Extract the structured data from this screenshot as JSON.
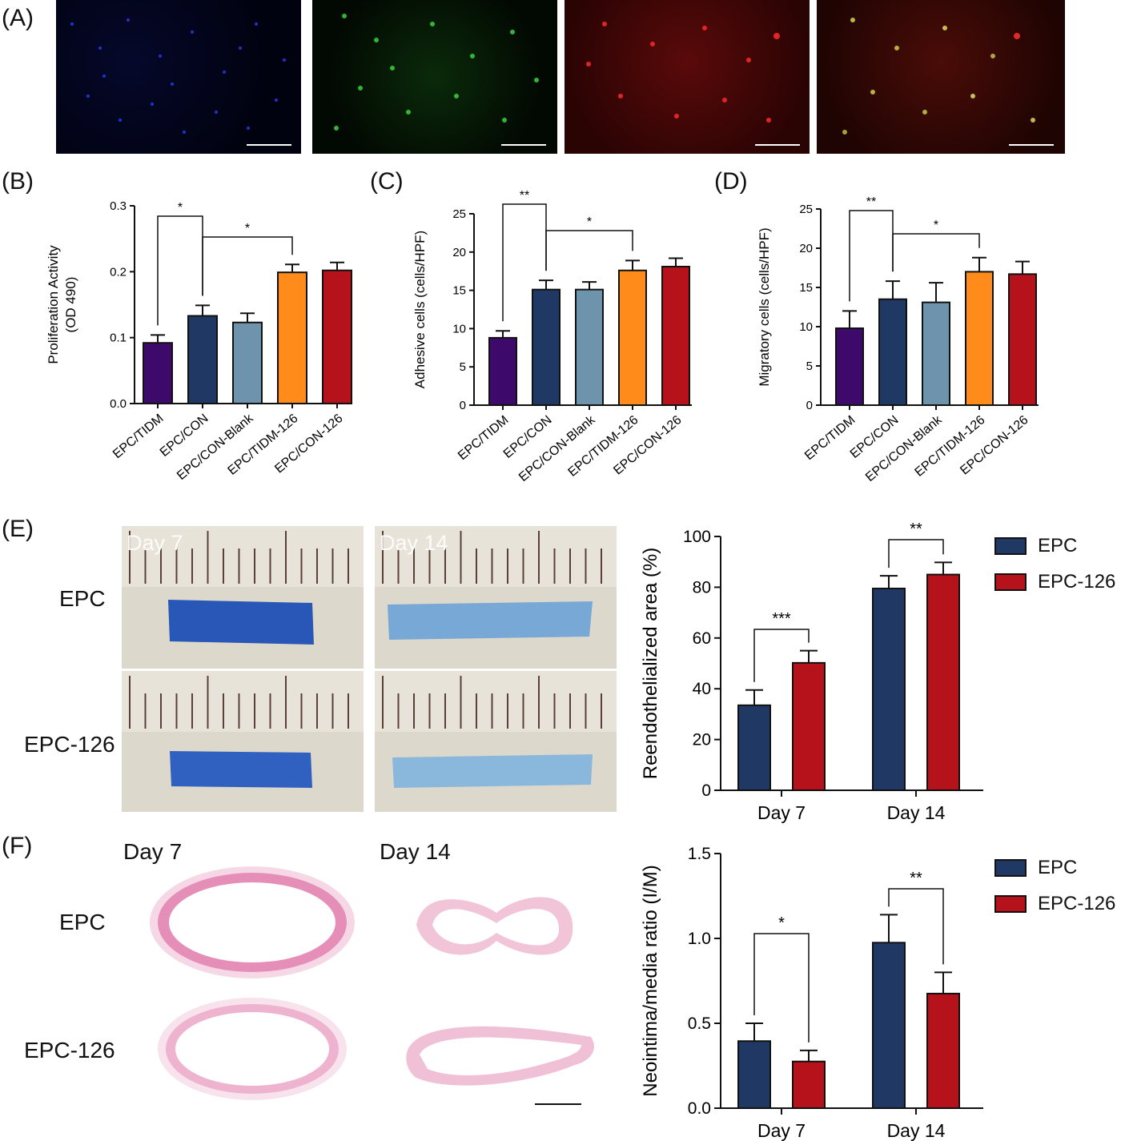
{
  "panels": {
    "a": "(A)",
    "b": "(B)",
    "c": "(C)",
    "d": "(D)",
    "e": "(E)",
    "f": "(F)"
  },
  "colors": {
    "tidm": "#3d0a6b",
    "con": "#203864",
    "blank": "#6d93ad",
    "tidm126": "#ff8c1a",
    "con126": "#b5121b",
    "epc": "#203864",
    "epc126": "#b5121b"
  },
  "panel_e": {
    "day7": "Day 7",
    "day14": "Day 14",
    "row_epc": "EPC",
    "row_epc126": "EPC-126"
  },
  "panel_f": {
    "day7": "Day 7",
    "day14": "Day 14",
    "row_epc": "EPC",
    "row_epc126": "EPC-126"
  },
  "legend_e": {
    "epc": "EPC",
    "epc126": "EPC-126"
  },
  "legend_f": {
    "epc": "EPC",
    "epc126": "EPC-126"
  },
  "chart_data": [
    {
      "id": "B",
      "type": "bar",
      "ylabel": [
        "Proliferation Activity",
        "(OD 490)"
      ],
      "ylim": [
        0,
        0.3
      ],
      "ticks": [
        0.0,
        0.1,
        0.2,
        0.3
      ],
      "tick_labels": [
        "0.0",
        "0.1",
        "0.2",
        "0.3"
      ],
      "categories": [
        "EPC/TIDM",
        "EPC/CON",
        "EPC/CON-Blank",
        "EPC/TIDM-126",
        "EPC/CON-126"
      ],
      "values": [
        0.092,
        0.133,
        0.123,
        0.199,
        0.202
      ],
      "errors": [
        0.012,
        0.016,
        0.014,
        0.012,
        0.012
      ],
      "significance": [
        {
          "from": 0,
          "to": 1,
          "label": "*"
        },
        {
          "from": 1,
          "to": 3,
          "label": "*"
        }
      ]
    },
    {
      "id": "C",
      "type": "bar",
      "ylabel": [
        "Adhesive cells (cells/HPF)"
      ],
      "ylim": [
        0,
        25
      ],
      "ticks": [
        0,
        5,
        10,
        15,
        20,
        25
      ],
      "tick_labels": [
        "0",
        "5",
        "10",
        "15",
        "20",
        "25"
      ],
      "categories": [
        "EPC/TIDM",
        "EPC/CON",
        "EPC/CON-Blank",
        "EPC/TIDM-126",
        "EPC/CON-126"
      ],
      "values": [
        8.8,
        15.1,
        15.1,
        17.6,
        18.1
      ],
      "errors": [
        0.9,
        1.2,
        1.0,
        1.3,
        1.1
      ],
      "significance": [
        {
          "from": 0,
          "to": 1,
          "label": "**"
        },
        {
          "from": 1,
          "to": 3,
          "label": "*"
        }
      ]
    },
    {
      "id": "D",
      "type": "bar",
      "ylabel": [
        "Migratory cells (cells/HPF)"
      ],
      "ylim": [
        0,
        25
      ],
      "ticks": [
        0,
        5,
        10,
        15,
        20,
        25
      ],
      "tick_labels": [
        "0",
        "5",
        "10",
        "15",
        "20",
        "25"
      ],
      "categories": [
        "EPC/TIDM",
        "EPC/CON",
        "EPC/CON-Blank",
        "EPC/TIDM-126",
        "EPC/CON-126"
      ],
      "values": [
        9.8,
        13.5,
        13.1,
        17.0,
        16.7
      ],
      "errors": [
        2.2,
        2.3,
        2.5,
        1.8,
        1.6
      ],
      "significance": [
        {
          "from": 0,
          "to": 1,
          "label": "**"
        },
        {
          "from": 1,
          "to": 3,
          "label": "*"
        }
      ]
    },
    {
      "id": "E",
      "type": "bar",
      "ylabel": [
        "Reendothelialized area (%)"
      ],
      "ylim": [
        0,
        100
      ],
      "ticks": [
        0,
        20,
        40,
        60,
        80,
        100
      ],
      "tick_labels": [
        "0",
        "20",
        "40",
        "60",
        "80",
        "100"
      ],
      "categories": [
        "Day 7",
        "Day 14"
      ],
      "series": [
        {
          "name": "EPC",
          "values": [
            33.5,
            79.5
          ],
          "errors": [
            6.0,
            5.0
          ]
        },
        {
          "name": "EPC-126",
          "values": [
            50.2,
            85.0
          ],
          "errors": [
            4.8,
            4.8
          ]
        }
      ],
      "significance": [
        {
          "group": 0,
          "label": "***"
        },
        {
          "group": 1,
          "label": "**"
        }
      ]
    },
    {
      "id": "F",
      "type": "bar",
      "ylabel": [
        "Neointima/media ratio (I/M)"
      ],
      "ylim": [
        0,
        1.5
      ],
      "ticks": [
        0.0,
        0.5,
        1.0,
        1.5
      ],
      "tick_labels": [
        "0.0",
        "0.5",
        "1.0",
        "1.5"
      ],
      "categories": [
        "Day 7",
        "Day 14"
      ],
      "series": [
        {
          "name": "EPC",
          "values": [
            0.395,
            0.975
          ],
          "errors": [
            0.105,
            0.165
          ]
        },
        {
          "name": "EPC-126",
          "values": [
            0.275,
            0.675
          ],
          "errors": [
            0.065,
            0.125
          ]
        }
      ],
      "significance": [
        {
          "group": 0,
          "label": "*"
        },
        {
          "group": 1,
          "label": "**"
        }
      ]
    }
  ]
}
